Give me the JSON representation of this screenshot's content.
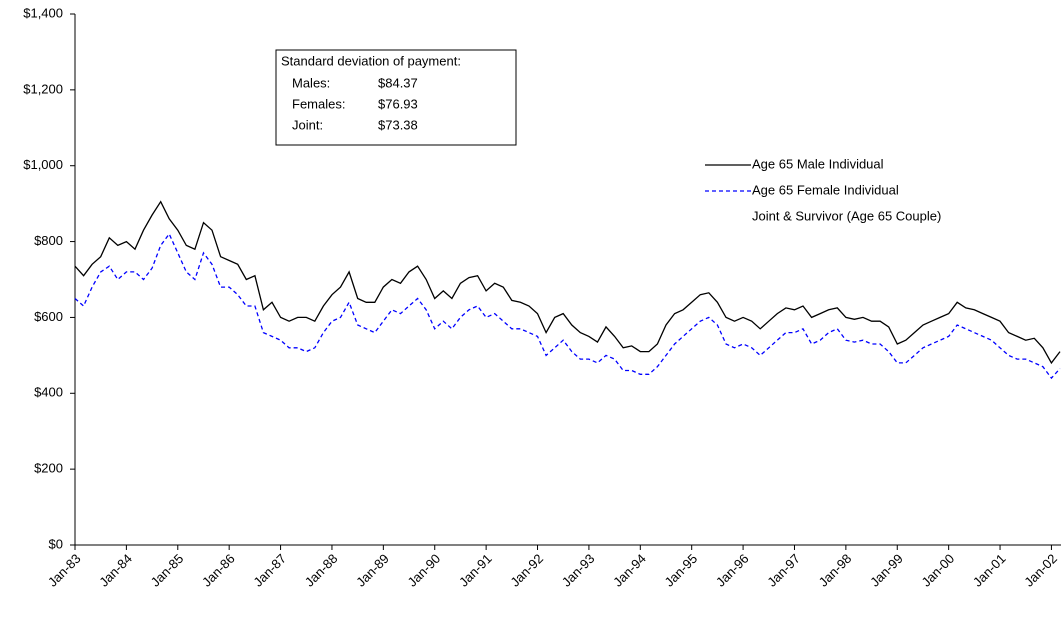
{
  "chart_data": {
    "type": "line",
    "categories": [
      "Jan-83",
      null,
      null,
      null,
      null,
      null,
      "Jan-84",
      null,
      null,
      null,
      null,
      null,
      "Jan-85",
      null,
      null,
      null,
      null,
      null,
      "Jan-86",
      null,
      null,
      null,
      null,
      null,
      "Jan-87",
      null,
      null,
      null,
      null,
      null,
      "Jan-88",
      null,
      null,
      null,
      null,
      null,
      "Jan-89",
      null,
      null,
      null,
      null,
      null,
      "Jan-90",
      null,
      null,
      null,
      null,
      null,
      "Jan-91",
      null,
      null,
      null,
      null,
      null,
      "Jan-92",
      null,
      null,
      null,
      null,
      null,
      "Jan-93",
      null,
      null,
      null,
      null,
      null,
      "Jan-94",
      null,
      null,
      null,
      null,
      null,
      "Jan-95",
      null,
      null,
      null,
      null,
      null,
      "Jan-96",
      null,
      null,
      null,
      null,
      null,
      "Jan-97",
      null,
      null,
      null,
      null,
      null,
      "Jan-98",
      null,
      null,
      null,
      null,
      null,
      "Jan-99",
      null,
      null,
      null,
      null,
      null,
      "Jan-00",
      null,
      null,
      null,
      null,
      null,
      "Jan-01",
      null,
      null,
      null,
      null,
      null,
      "Jan-02",
      null
    ],
    "series": [
      {
        "name": "Age 65 Male Individual",
        "color": "#000000",
        "dash": false,
        "values": [
          735,
          710,
          740,
          760,
          810,
          790,
          800,
          780,
          830,
          870,
          905,
          860,
          830,
          790,
          780,
          850,
          830,
          760,
          750,
          740,
          700,
          710,
          620,
          640,
          600,
          590,
          600,
          600,
          590,
          630,
          660,
          680,
          720,
          650,
          640,
          640,
          680,
          700,
          690,
          720,
          735,
          700,
          650,
          670,
          650,
          690,
          705,
          710,
          670,
          690,
          680,
          645,
          640,
          630,
          610,
          560,
          600,
          610,
          580,
          560,
          550,
          535,
          575,
          550,
          520,
          525,
          510,
          510,
          530,
          580,
          610,
          620,
          640,
          660,
          665,
          640,
          600,
          590,
          600,
          590,
          570,
          590,
          610,
          625,
          620,
          630,
          600,
          610,
          620,
          625,
          600,
          595,
          600,
          590,
          590,
          575,
          530,
          540,
          560,
          580,
          590,
          600,
          610,
          640,
          625,
          620,
          610,
          600,
          590,
          560,
          550,
          540,
          545,
          520,
          480,
          510
        ]
      },
      {
        "name": "Age 65 Female Individual",
        "color": "#0000ff",
        "dash": true,
        "values": [
          650,
          630,
          680,
          720,
          735,
          700,
          720,
          720,
          700,
          730,
          790,
          820,
          770,
          720,
          700,
          770,
          740,
          680,
          680,
          660,
          630,
          630,
          560,
          550,
          540,
          520,
          520,
          510,
          520,
          560,
          590,
          600,
          640,
          580,
          570,
          560,
          590,
          620,
          610,
          630,
          650,
          620,
          570,
          590,
          570,
          600,
          620,
          630,
          600,
          610,
          590,
          570,
          570,
          560,
          550,
          500,
          520,
          540,
          510,
          490,
          490,
          480,
          500,
          490,
          460,
          460,
          450,
          450,
          470,
          500,
          530,
          550,
          570,
          590,
          600,
          580,
          530,
          520,
          530,
          520,
          500,
          520,
          540,
          560,
          560,
          570,
          530,
          540,
          560,
          570,
          540,
          535,
          540,
          530,
          530,
          510,
          480,
          480,
          500,
          520,
          530,
          540,
          550,
          580,
          570,
          560,
          550,
          540,
          520,
          500,
          490,
          490,
          480,
          470,
          440,
          465
        ]
      },
      {
        "name": "Joint & Survivor (Age 65 Couple)",
        "color": "#ffffff",
        "dash": false,
        "values": [
          null,
          null,
          null,
          null,
          null,
          null,
          null,
          null,
          null,
          null,
          null,
          null,
          null,
          null,
          null,
          null,
          null,
          null,
          null,
          null,
          null,
          null,
          null,
          null,
          null,
          null,
          null,
          null,
          null,
          null,
          null,
          null,
          null,
          null,
          null,
          null,
          null,
          null,
          null,
          null,
          null,
          null,
          null,
          null,
          null,
          null,
          null,
          null,
          null,
          null,
          null,
          null,
          null,
          null,
          null,
          null,
          null,
          null,
          null,
          null,
          null,
          null,
          null,
          null,
          null,
          null,
          null,
          null,
          null,
          null,
          null,
          null,
          null,
          null,
          null,
          null,
          null,
          null,
          null,
          null,
          null,
          null,
          null,
          null,
          null,
          null,
          null,
          null,
          null,
          null,
          null,
          null,
          null,
          null,
          null,
          null,
          null,
          null,
          null,
          null,
          null,
          null,
          null,
          null,
          null,
          null,
          null,
          null,
          null,
          null,
          null,
          null,
          null,
          null,
          null,
          null
        ]
      }
    ],
    "ylim": [
      0,
      1400
    ],
    "yticks": [
      {
        "value": 0,
        "label": "$0"
      },
      {
        "value": 200,
        "label": "$200"
      },
      {
        "value": 400,
        "label": "$400"
      },
      {
        "value": 600,
        "label": "$600"
      },
      {
        "value": 800,
        "label": "$800"
      },
      {
        "value": 1000,
        "label": "$1,000"
      },
      {
        "value": 1200,
        "label": "$1,200"
      },
      {
        "value": 1400,
        "label": "$1,400"
      }
    ],
    "grid": false,
    "legend": "right",
    "annotation": {
      "title": "Standard deviation of payment:",
      "rows": [
        [
          "Males:",
          "$84.37"
        ],
        [
          "Females:",
          "$76.93"
        ],
        [
          "Joint:",
          "$73.38"
        ]
      ]
    }
  }
}
